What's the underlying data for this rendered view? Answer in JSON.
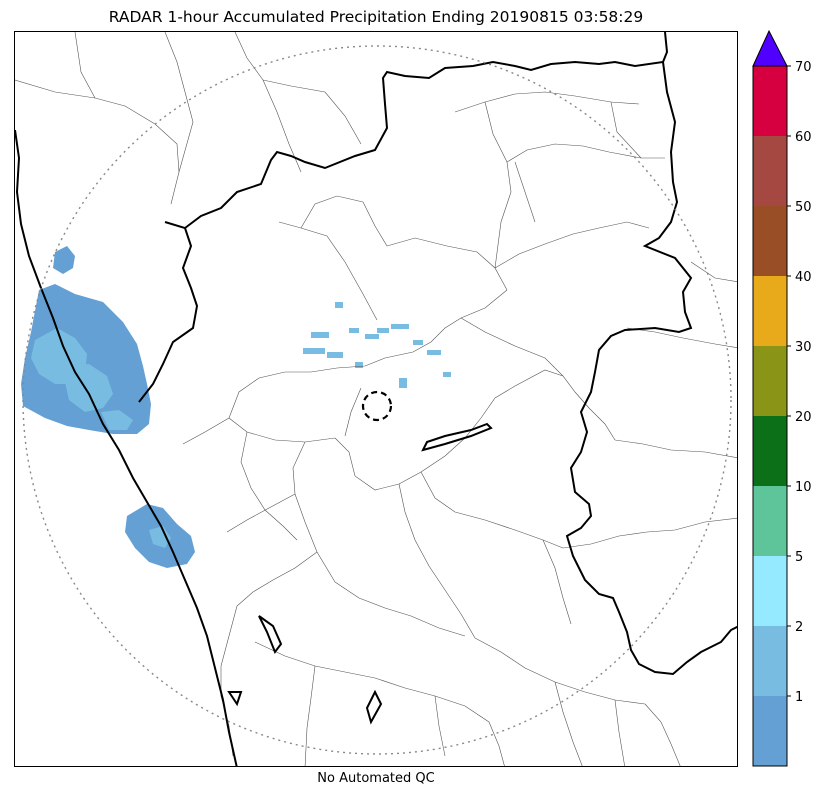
{
  "title": "RADAR 1-hour Accumulated Precipitation Ending 20190815 03:58:29",
  "footer": "No Automated QC",
  "colors": {
    "state_border": "#000000",
    "district_border": "#555555",
    "range_ring": "#888888",
    "overflow_arrow": "#5000ff"
  },
  "legend": {
    "type": "colorbar",
    "placement": "right",
    "overflow": "extend-max",
    "levels": [
      {
        "label": "",
        "color": "#64a0d4"
      },
      {
        "label": "1",
        "color": "#78bce2"
      },
      {
        "label": "2",
        "color": "#96eaff"
      },
      {
        "label": "5",
        "color": "#5ec49a"
      },
      {
        "label": "10",
        "color": "#0c7018"
      },
      {
        "label": "20",
        "color": "#8a9416"
      },
      {
        "label": "30",
        "color": "#e8aa1a"
      },
      {
        "label": "40",
        "color": "#9a4e26"
      },
      {
        "label": "50",
        "color": "#a64842"
      },
      {
        "label": "60",
        "color": "#d60040"
      },
      {
        "label": "70",
        "color": "#5000ff"
      }
    ]
  },
  "precip_areas": [
    {
      "name": "west-coast-cell",
      "level": 1
    },
    {
      "name": "southwest-cell",
      "level": 0
    },
    {
      "name": "central-scattered-echoes",
      "level": 2
    }
  ]
}
